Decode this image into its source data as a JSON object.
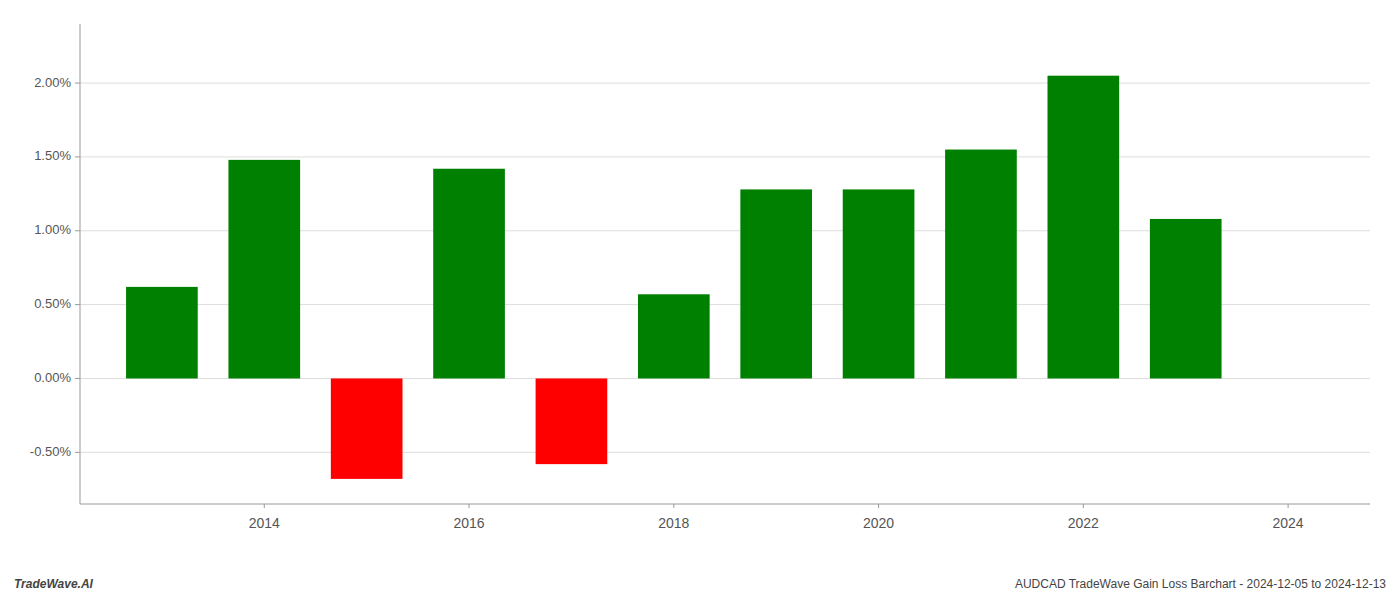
{
  "chart_data": {
    "type": "bar",
    "x": [
      2013,
      2014,
      2015,
      2016,
      2017,
      2018,
      2019,
      2020,
      2021,
      2022,
      2023
    ],
    "values": [
      0.0062,
      0.0148,
      -0.0068,
      0.0142,
      -0.0058,
      0.0057,
      0.0128,
      0.0128,
      0.0155,
      0.0205,
      0.0108
    ],
    "colors": [
      "#008000",
      "#008000",
      "#ff0000",
      "#008000",
      "#ff0000",
      "#008000",
      "#008000",
      "#008000",
      "#008000",
      "#008000",
      "#008000"
    ],
    "xlim": [
      2012.2,
      2024.8
    ],
    "xticks": [
      2014,
      2016,
      2018,
      2020,
      2022,
      2024
    ],
    "ylim": [
      -0.0085,
      0.024
    ],
    "yticks": [
      {
        "value": -0.005,
        "label": "-0.50%"
      },
      {
        "value": 0.0,
        "label": "0.00%"
      },
      {
        "value": 0.005,
        "label": "0.50%"
      },
      {
        "value": 0.01,
        "label": "1.00%"
      },
      {
        "value": 0.015,
        "label": "1.50%"
      },
      {
        "value": 0.02,
        "label": "2.00%"
      }
    ],
    "grid": true,
    "annotations": [
      "TradeWave.AI",
      "AUDCAD TradeWave Gain Loss Barchart - 2024-12-05 to 2024-12-13"
    ]
  }
}
